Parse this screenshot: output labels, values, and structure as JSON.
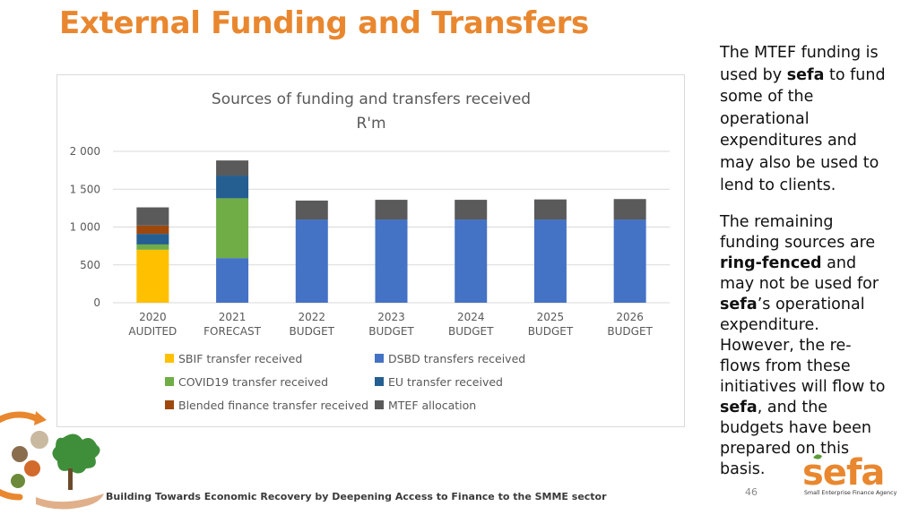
{
  "slide": {
    "title": "External Funding and Transfers",
    "footer": "Building Towards Economic Recovery by Deepening Access to Finance to the SMME sector",
    "page_number": "46",
    "side_text": {
      "p1": [
        "The MTEF funding is used by ",
        "sefa",
        " to fund some of the operational expenditures and may also be used to lend to clients."
      ],
      "p2": [
        "The remaining funding sources are ",
        "ring-fenced",
        " and may not be used for ",
        "sefa",
        "’s operational expenditure. However, the re-flows from these initiatives will flow to ",
        "sefa",
        ", and the budgets have been prepared on this basis."
      ]
    },
    "logo": {
      "brand": "sefa",
      "tagline": "Small Enterprise Finance Agency"
    }
  },
  "chart_data": {
    "type": "bar",
    "stacked": true,
    "title": "Sources of funding and transfers received",
    "subtitle": "R'm",
    "xlabel": "",
    "ylabel": "",
    "ylim": [
      0,
      2000
    ],
    "yticks": [
      0,
      500,
      1000,
      1500,
      2000
    ],
    "ytick_labels": [
      "0",
      "500",
      "1 000",
      "1 500",
      "2 000"
    ],
    "grid": true,
    "legend_position": "bottom",
    "categories": [
      [
        "2020",
        "AUDITED"
      ],
      [
        "2021",
        "FORECAST"
      ],
      [
        "2022",
        "BUDGET"
      ],
      [
        "2023",
        "BUDGET"
      ],
      [
        "2024",
        "BUDGET"
      ],
      [
        "2025",
        "BUDGET"
      ],
      [
        "2026",
        "BUDGET"
      ]
    ],
    "series": [
      {
        "name": "SBIF transfer received",
        "color": "#ffc000",
        "values": [
          700,
          0,
          0,
          0,
          0,
          0,
          0
        ]
      },
      {
        "name": "COVID19 transfer received",
        "color": "#70ad47",
        "values": [
          70,
          790,
          0,
          0,
          0,
          0,
          0
        ]
      },
      {
        "name": "EU transfer received",
        "color": "#255e91",
        "values": [
          140,
          300,
          0,
          0,
          0,
          0,
          0
        ]
      },
      {
        "name": "Blended finance transfer received",
        "color": "#9e480e",
        "values": [
          110,
          0,
          0,
          0,
          0,
          0,
          0
        ]
      },
      {
        "name": "DSBD transfers received",
        "color": "#4472c4",
        "values": [
          0,
          590,
          1100,
          1100,
          1100,
          1100,
          1100
        ]
      },
      {
        "name": "MTEF allocation",
        "color": "#5a5a5a",
        "values": [
          240,
          200,
          250,
          260,
          260,
          265,
          270
        ]
      }
    ],
    "stack_order": [
      "DSBD transfers received",
      "SBIF transfer received",
      "COVID19 transfer received",
      "EU transfer received",
      "Blended finance transfer received",
      "MTEF allocation"
    ],
    "legend_order": [
      [
        "SBIF transfer received",
        "DSBD transfers received"
      ],
      [
        "COVID19 transfer received",
        "EU transfer received"
      ],
      [
        "Blended finance transfer received",
        "MTEF allocation"
      ]
    ]
  }
}
